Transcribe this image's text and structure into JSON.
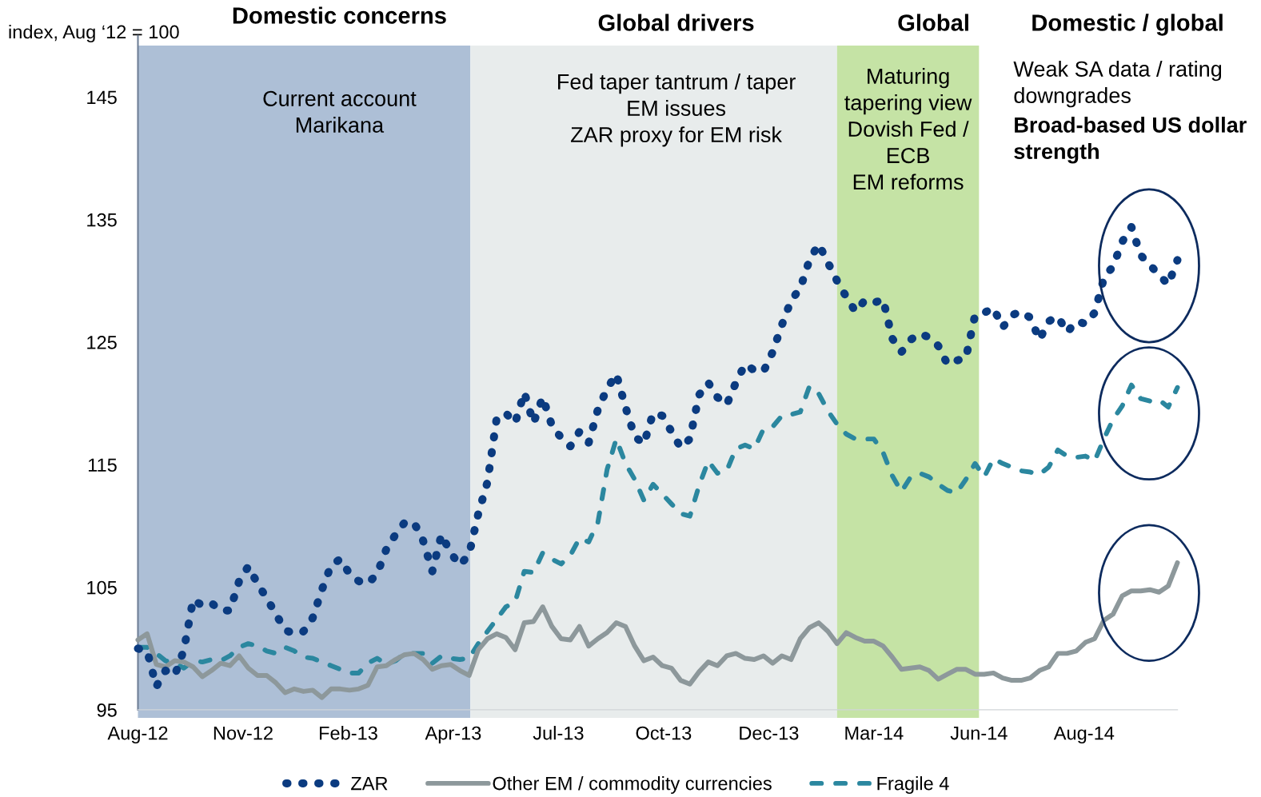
{
  "chart_data": {
    "type": "line",
    "ylabel": "index, Aug ‘12 = 100",
    "x": [
      "2012-08-31",
      "2012-09-07",
      "2012-09-14",
      "2012-09-21",
      "2012-09-28",
      "2012-10-05",
      "2012-10-12",
      "2012-10-19",
      "2012-10-26",
      "2012-11-02",
      "2012-11-09",
      "2012-11-16",
      "2012-11-23",
      "2012-11-30",
      "2012-12-07",
      "2012-12-14",
      "2012-12-21",
      "2012-12-28",
      "2013-01-04",
      "2013-01-11",
      "2013-01-18",
      "2013-01-25",
      "2013-02-01",
      "2013-02-08",
      "2013-02-15",
      "2013-02-22",
      "2013-03-01",
      "2013-03-08",
      "2013-03-15",
      "2013-03-22",
      "2013-03-29",
      "2013-04-05",
      "2013-04-12",
      "2013-04-19",
      "2013-04-26",
      "2013-05-03",
      "2013-05-10",
      "2013-05-17",
      "2013-05-24",
      "2013-05-31",
      "2013-06-07",
      "2013-06-14",
      "2013-06-21",
      "2013-06-28",
      "2013-07-05",
      "2013-07-12",
      "2013-07-19",
      "2013-07-26",
      "2013-08-02",
      "2013-08-09",
      "2013-08-16",
      "2013-08-23",
      "2013-08-30",
      "2013-09-06",
      "2013-09-13",
      "2013-09-20",
      "2013-09-27",
      "2013-10-04",
      "2013-10-11",
      "2013-10-18",
      "2013-10-25",
      "2013-11-01",
      "2013-11-08",
      "2013-11-15",
      "2013-11-22",
      "2013-11-29",
      "2013-12-06",
      "2013-12-13",
      "2013-12-20",
      "2013-12-27",
      "2014-01-03",
      "2014-01-10",
      "2014-01-17",
      "2014-01-24",
      "2014-01-31",
      "2014-02-07",
      "2014-02-14",
      "2014-02-21",
      "2014-02-28",
      "2014-03-07",
      "2014-03-14",
      "2014-03-21",
      "2014-03-28",
      "2014-04-04",
      "2014-04-11",
      "2014-04-18",
      "2014-04-25",
      "2014-05-02",
      "2014-05-09",
      "2014-05-16",
      "2014-05-23",
      "2014-05-30",
      "2014-06-06",
      "2014-06-13",
      "2014-06-20",
      "2014-06-27",
      "2014-07-04",
      "2014-07-11",
      "2014-07-18",
      "2014-07-25",
      "2014-08-01",
      "2014-08-08",
      "2014-08-15",
      "2014-08-22",
      "2014-08-29",
      "2014-09-05",
      "2014-09-12",
      "2014-09-19",
      "2014-09-26",
      "2014-10-03",
      "2014-10-10",
      "2014-10-17",
      "2014-10-24",
      "2014-10-31"
    ],
    "series": [
      {
        "name": "ZAR",
        "color": "#0b3b80",
        "line_style": "dotted",
        "values": [
          100.0,
          99.8,
          96.9,
          98.2,
          97.8,
          99.9,
          104.0,
          103.5,
          103.7,
          103.1,
          103.1,
          105.5,
          106.7,
          105.3,
          104.1,
          102.8,
          101.5,
          101.2,
          101.4,
          102.5,
          104.8,
          106.8,
          107.3,
          106.1,
          105.5,
          105.3,
          106.1,
          108.1,
          109.3,
          110.3,
          110.3,
          108.8,
          106.3,
          109.3,
          107.8,
          106.8,
          107.7,
          111.0,
          113.6,
          118.8,
          119.2,
          118.4,
          120.9,
          118.4,
          120.5,
          118.2,
          117.2,
          116.5,
          117.7,
          116.8,
          119.5,
          121.2,
          122.4,
          119.7,
          117.3,
          116.7,
          119.2,
          119.0,
          117.7,
          116.4,
          117.1,
          120.7,
          121.7,
          120.5,
          119.9,
          121.7,
          123.2,
          122.7,
          122.6,
          124.2,
          126.4,
          128.4,
          129.4,
          131.7,
          133.0,
          131.5,
          130.0,
          128.7,
          127.5,
          128.4,
          128.2,
          128.5,
          125.3,
          124.2,
          125.2,
          125.7,
          125.4,
          124.7,
          123.2,
          123.5,
          123.7,
          127.2,
          127.4,
          127.8,
          126.2,
          127.2,
          127.5,
          127.0,
          125.2,
          126.7,
          127.1,
          125.8,
          126.7,
          126.5,
          127.4,
          130.2,
          131.2,
          133.2,
          134.4,
          132.1,
          131.3,
          130.5,
          129.7,
          131.7
        ]
      },
      {
        "name": "Other EM / commodity currencies",
        "color": "#8d989b",
        "line_style": "solid",
        "values": [
          100.7,
          101.2,
          98.7,
          98.5,
          99.0,
          98.9,
          98.5,
          97.7,
          98.2,
          98.8,
          98.6,
          99.4,
          98.4,
          97.8,
          97.8,
          97.2,
          96.4,
          96.7,
          96.5,
          96.6,
          96.0,
          96.7,
          96.7,
          96.6,
          96.7,
          97.0,
          98.5,
          98.6,
          99.1,
          99.5,
          99.6,
          99.1,
          98.3,
          98.6,
          98.7,
          98.2,
          97.8,
          99.9,
          100.8,
          101.2,
          100.9,
          99.9,
          102.1,
          102.2,
          103.4,
          101.8,
          100.8,
          100.7,
          101.8,
          100.2,
          100.8,
          101.3,
          102.1,
          101.8,
          100.2,
          99.0,
          99.3,
          98.6,
          98.4,
          97.4,
          97.1,
          98.1,
          98.9,
          98.6,
          99.4,
          99.6,
          99.2,
          99.1,
          99.4,
          98.8,
          99.4,
          99.1,
          100.8,
          101.7,
          102.1,
          101.4,
          100.4,
          101.3,
          100.9,
          100.6,
          100.6,
          100.2,
          99.3,
          98.3,
          98.4,
          98.5,
          98.2,
          97.5,
          97.9,
          98.3,
          98.3,
          97.9,
          97.9,
          98.0,
          97.6,
          97.4,
          97.4,
          97.6,
          98.2,
          98.5,
          99.6,
          99.6,
          99.8,
          100.5,
          100.8,
          102.3,
          102.8,
          104.3,
          104.7,
          104.7,
          104.8,
          104.6,
          105.1,
          107.0
        ]
      },
      {
        "name": "Fragile 4",
        "color": "#2b879f",
        "line_style": "dashed",
        "values": [
          100.1,
          100.1,
          99.6,
          99.0,
          98.8,
          98.4,
          99.0,
          98.9,
          99.1,
          99.0,
          99.4,
          100.1,
          100.4,
          100.2,
          99.8,
          99.6,
          100.1,
          99.8,
          99.3,
          99.2,
          98.9,
          98.6,
          98.3,
          98.0,
          98.0,
          98.8,
          99.2,
          98.7,
          99.0,
          99.6,
          99.6,
          99.6,
          98.8,
          99.4,
          99.2,
          99.1,
          99.2,
          100.4,
          101.4,
          102.4,
          103.4,
          103.8,
          106.3,
          106.2,
          107.8,
          107.3,
          106.9,
          107.6,
          109.0,
          108.7,
          110.3,
          114.6,
          117.1,
          115.1,
          113.8,
          112.1,
          113.4,
          112.6,
          111.8,
          111.0,
          110.8,
          113.3,
          115.3,
          114.3,
          114.5,
          116.3,
          116.6,
          116.3,
          117.9,
          118.1,
          119.0,
          119.1,
          119.3,
          121.4,
          120.8,
          119.4,
          118.3,
          117.5,
          117.1,
          117.1,
          117.1,
          116.0,
          114.1,
          112.8,
          114.0,
          114.3,
          114.0,
          113.4,
          112.9,
          112.7,
          113.8,
          115.1,
          114.0,
          115.5,
          115.1,
          114.8,
          114.5,
          114.4,
          114.2,
          114.8,
          116.2,
          115.7,
          115.6,
          115.7,
          115.3,
          117.1,
          118.7,
          119.8,
          121.5,
          120.4,
          120.2,
          120.3,
          119.7,
          121.3
        ]
      }
    ],
    "xlim": [
      "2012-08-31",
      "2014-10-31"
    ],
    "xticks": [
      {
        "value": "2012-08-31",
        "label": "Aug-12"
      },
      {
        "value": "2012-11-19",
        "label": "Nov-12"
      },
      {
        "value": "2013-02-07",
        "label": "Feb-13"
      },
      {
        "value": "2013-04-28",
        "label": "Apr-13"
      },
      {
        "value": "2013-07-17",
        "label": "Jul-13"
      },
      {
        "value": "2013-10-05",
        "label": "Oct-13"
      },
      {
        "value": "2013-12-24",
        "label": "Dec-13"
      },
      {
        "value": "2014-03-14",
        "label": "Mar-14"
      },
      {
        "value": "2014-06-02",
        "label": "Jun-14"
      },
      {
        "value": "2014-08-21",
        "label": "Aug-14"
      }
    ],
    "ylim": [
      95,
      150
    ],
    "yticks": [
      95,
      105,
      115,
      125,
      135,
      145
    ],
    "bands": [
      {
        "axis": "x",
        "from": "2012-08-31",
        "to": "2013-05-11",
        "label": "Domestic concerns",
        "color": "#adbfd6"
      },
      {
        "axis": "x",
        "from": "2013-05-11",
        "to": "2014-02-14",
        "label": "Global drivers",
        "color": "#e8ecec"
      },
      {
        "axis": "x",
        "from": "2014-02-14",
        "to": "2014-06-02",
        "label": "Global",
        "color": "#c5e3a5"
      }
    ],
    "annotations": [
      "Current account\nMarikana",
      "Fed taper tantrum / taper\nEM issues\nZAR proxy for EM risk",
      "Maturing\ntapering view\nDovish Fed /\nECB\nEM reforms",
      "Domestic / global",
      "Weak SA data / rating\ndowngrades",
      "Broad-based US dollar\nstrength"
    ],
    "legend": "bottom"
  }
}
